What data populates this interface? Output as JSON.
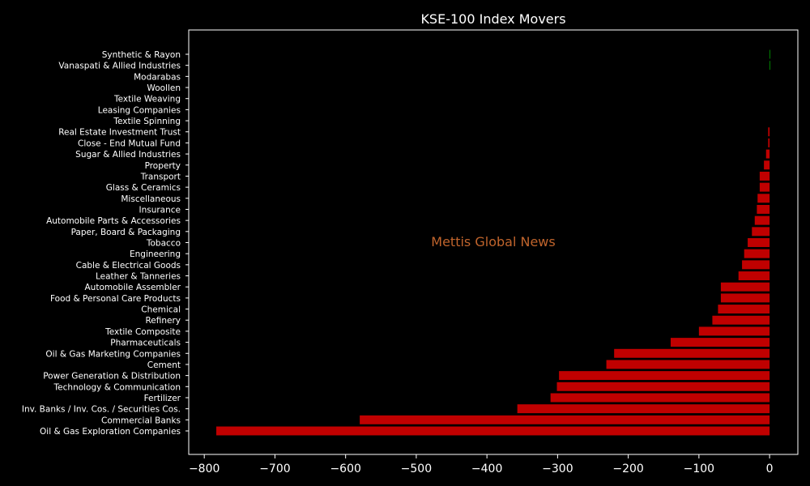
{
  "chart_data": {
    "type": "bar",
    "orientation": "horizontal",
    "title": "KSE-100 Index Movers",
    "xlabel": "",
    "ylabel": "",
    "xlim": [
      -822,
      40
    ],
    "xticks": [
      -800,
      -700,
      -600,
      -500,
      -400,
      -300,
      -200,
      -100,
      0
    ],
    "xtick_labels": [
      "−800",
      "−700",
      "−600",
      "−500",
      "−400",
      "−300",
      "−200",
      "−100",
      "0"
    ],
    "grid": false,
    "colors": {
      "negative": "#c00000",
      "positive": "#00a000",
      "background": "#000000",
      "text": "#ffffff",
      "watermark": "#c0642c"
    },
    "categories": [
      "Oil & Gas Exploration Companies",
      "Commercial Banks",
      "Inv. Banks / Inv. Cos. / Securities Cos.",
      "Fertilizer",
      "Technology & Communication",
      "Power Generation & Distribution",
      "Cement",
      "Oil & Gas Marketing Companies",
      "Pharmaceuticals",
      "Textile Composite",
      "Refinery",
      "Chemical",
      "Food & Personal Care Products",
      "Automobile Assembler",
      "Leather & Tanneries",
      "Cable & Electrical Goods",
      "Engineering",
      "Tobacco",
      "Paper, Board & Packaging",
      "Automobile Parts & Accessories",
      "Insurance",
      "Miscellaneous",
      "Glass & Ceramics",
      "Transport",
      "Property",
      "Sugar & Allied Industries",
      "Close - End Mutual Fund",
      "Real Estate Investment Trust",
      "Textile Spinning",
      "Leasing Companies",
      "Textile Weaving",
      "Woollen",
      "Modarabas",
      "Vanaspati & Allied Industries",
      "Synthetic & Rayon"
    ],
    "values": [
      -783,
      -580,
      -357,
      -310,
      -301,
      -298,
      -231,
      -220,
      -140,
      -100,
      -81,
      -73,
      -69,
      -69,
      -44,
      -39,
      -36,
      -31,
      -25,
      -21,
      -18,
      -17,
      -14,
      -14,
      -8,
      -5,
      -2,
      -2,
      0,
      0,
      0,
      0,
      0,
      0.3,
      0.3
    ]
  },
  "watermark": "Mettis Global News"
}
